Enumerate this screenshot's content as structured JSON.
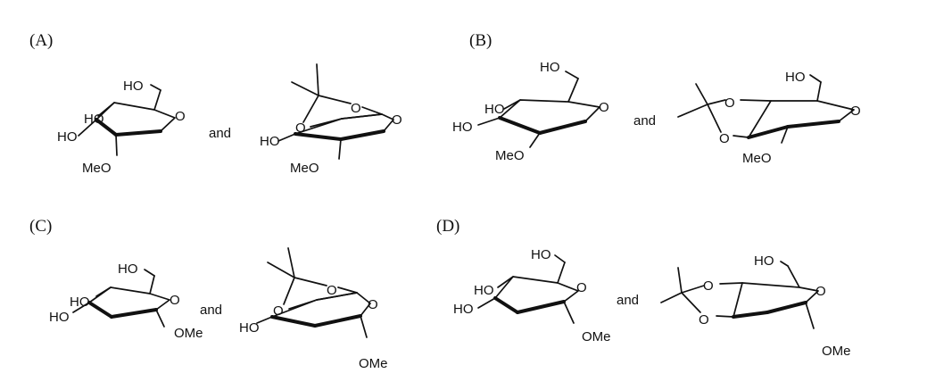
{
  "options": [
    {
      "label": "(A)",
      "connector": "and"
    },
    {
      "label": "(B)",
      "connector": "and"
    },
    {
      "label": "(C)",
      "connector": "and"
    },
    {
      "label": "(D)",
      "connector": "and"
    }
  ],
  "atoms": {
    "ho": "HO",
    "o": "O",
    "meo": "MeO",
    "ome": "OMe"
  }
}
